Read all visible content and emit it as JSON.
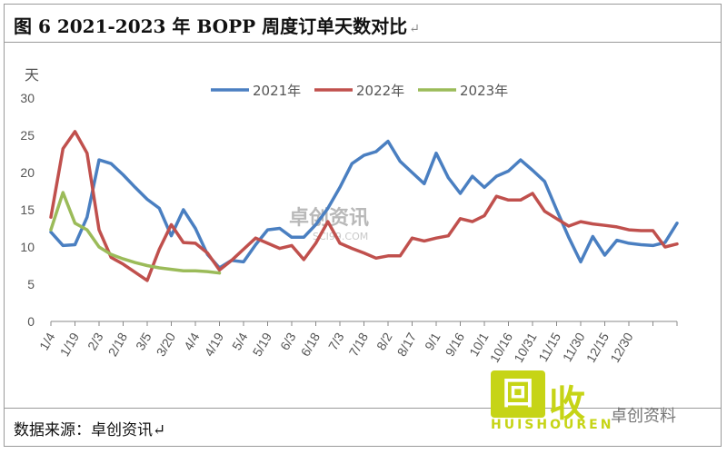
{
  "header": {
    "title": "图 6  2021-2023 年 BOPP 周度订单天数对比",
    "mark": "↵"
  },
  "footer": {
    "source": "数据来源：卓创资讯↵"
  },
  "watermark": {
    "text": "卓创资讯",
    "sub": "SCI99.COM"
  },
  "logo": {
    "glyph": "回",
    "text": "收",
    "sub": "HUISHOUREN",
    "caption": "卓创资料"
  },
  "chart_data": {
    "type": "line",
    "title": "",
    "ylabel": "天",
    "ylim": [
      0,
      30
    ],
    "yticks": [
      0,
      5,
      10,
      15,
      20,
      25,
      30
    ],
    "x_tick_labels": [
      "1/4",
      "1/19",
      "2/3",
      "2/18",
      "3/5",
      "3/20",
      "4/4",
      "4/19",
      "5/4",
      "5/19",
      "6/3",
      "6/18",
      "7/3",
      "7/18",
      "8/2",
      "8/17",
      "9/1",
      "9/16",
      "10/1",
      "10/16",
      "10/31",
      "11/15",
      "11/30",
      "12/15",
      "12/30"
    ],
    "legend_position": "top",
    "series": [
      {
        "name": "2021年",
        "color": "#4a7fc1",
        "values": [
          12,
          10.2,
          10.3,
          14,
          21.7,
          21.2,
          19.7,
          18,
          16.4,
          15.2,
          11.5,
          15,
          12.5,
          9,
          7.2,
          8.2,
          8,
          10.3,
          12.3,
          12.5,
          11.3,
          11.3,
          13,
          15.2,
          18,
          21.2,
          22.3,
          22.8,
          24.2,
          21.5,
          20,
          18.5,
          22.6,
          19.3,
          17.2,
          19.5,
          18,
          19.5,
          20.2,
          21.7,
          20.3,
          18.8,
          15,
          11.3,
          8,
          11.4,
          8.9,
          10.9,
          10.5,
          10.3,
          10.2,
          10.6,
          13.2
        ]
      },
      {
        "name": "2022年",
        "color": "#c0504d",
        "values": [
          14,
          23.2,
          25.5,
          22.6,
          12.3,
          8.6,
          7.7,
          6.6,
          5.5,
          9.7,
          13,
          10.6,
          10.5,
          9.2,
          6.9,
          8.2,
          9.7,
          11.2,
          10.5,
          9.8,
          10.2,
          8.3,
          10.5,
          13.4,
          10.5,
          9.8,
          9.2,
          8.5,
          8.8,
          8.8,
          11.2,
          10.8,
          11.2,
          11.5,
          13.8,
          13.4,
          14.2,
          16.8,
          16.3,
          16.3,
          17.2,
          14.8,
          13.8,
          12.8,
          13.4,
          13.1,
          12.9,
          12.7,
          12.3,
          12.2,
          12.2,
          10,
          10.4
        ]
      },
      {
        "name": "2023年",
        "color": "#9bbb59",
        "values": [
          12.3,
          17.3,
          13.2,
          12.3,
          10,
          9,
          8.4,
          7.9,
          7.5,
          7.2,
          7,
          6.8,
          6.8,
          6.7,
          6.5
        ]
      }
    ]
  }
}
